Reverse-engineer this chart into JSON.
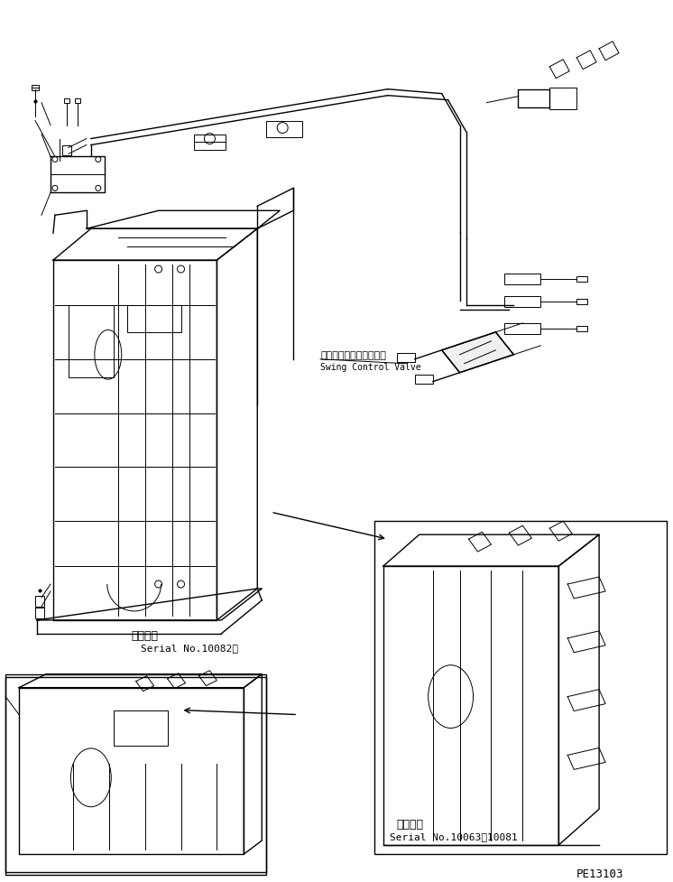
{
  "background_color": "#ffffff",
  "line_color": "#000000",
  "fig_width": 7.46,
  "fig_height": 9.78,
  "dpi": 100,
  "label_swing_jp": "旋回コントロールバルブ",
  "label_swing_en": "Swing Control Valve",
  "label_serial1_jp": "適用号機",
  "label_serial1_en": "Serial No.10082～",
  "label_serial2_jp": "適用号機",
  "label_serial2_en": "Serial No.10063～10081",
  "label_code": "PE13103",
  "font_main": 9,
  "font_label": 8,
  "font_code": 9
}
